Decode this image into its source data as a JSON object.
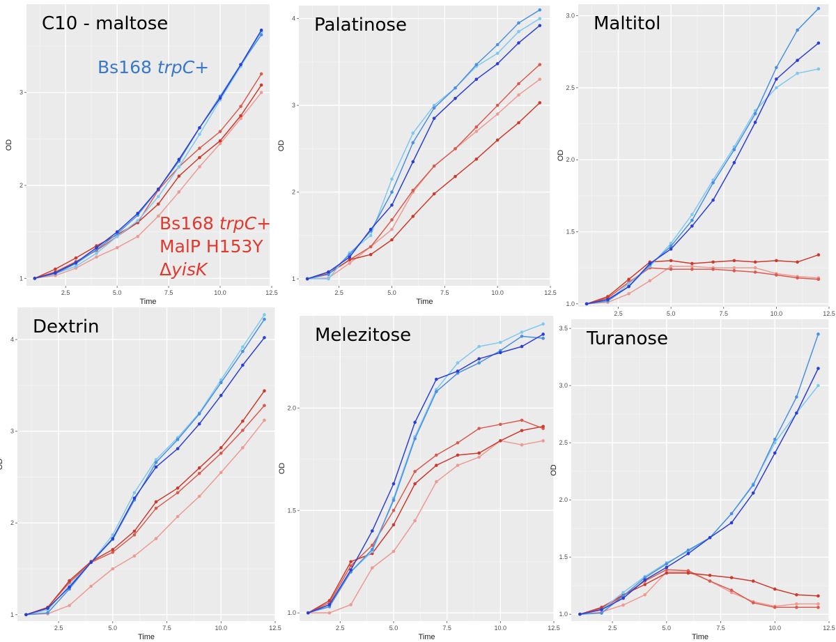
{
  "figure": {
    "legend": {
      "blue_label": {
        "prefix": "Bs168 ",
        "italic": "trpC",
        "suffix": "+",
        "color": "#3a78c8"
      },
      "red_label": {
        "line1_prefix": "Bs168 ",
        "line1_italic": "trpC",
        "line1_suffix": "+",
        "line2": "MalP H153Y",
        "line3_prefix": "Δ",
        "line3_italic": "yisK",
        "color": "#e03a2f"
      }
    },
    "series_colors": {
      "blue_light": "#7ec8f0",
      "blue_mid": "#4a90e2",
      "blue_dark": "#2a3fd4",
      "red_dark": "#cc3a2e",
      "red_mid": "#d95a4f",
      "red_light": "#ec9a92"
    },
    "panel_background": "#ebebeb"
  },
  "chart_data": [
    {
      "type": "line",
      "title": "C10 - maltose",
      "xlabel": "Time",
      "ylabel": "OD",
      "xlim": [
        0.6,
        12.4
      ],
      "ylim": [
        0.92,
        3.95
      ],
      "xticks": [
        2.5,
        5.0,
        7.5,
        10.0,
        12.5
      ],
      "xtick_labels": [
        "2.5",
        "5.0",
        "7.5",
        "10.0",
        "12.5"
      ],
      "yticks": [
        1,
        2,
        3
      ],
      "ytick_labels": [
        "1",
        "2",
        "3"
      ],
      "x": [
        1,
        2,
        3,
        4,
        5,
        6,
        7,
        8,
        9,
        10,
        11,
        12
      ],
      "series": [
        {
          "name": "blue_light",
          "values": [
            1,
            1.05,
            1.13,
            1.27,
            1.45,
            1.62,
            1.88,
            2.2,
            2.55,
            2.92,
            3.28,
            3.65
          ]
        },
        {
          "name": "blue_mid",
          "values": [
            1,
            1.05,
            1.16,
            1.31,
            1.48,
            1.68,
            1.96,
            2.26,
            2.62,
            2.96,
            3.3,
            3.62
          ]
        },
        {
          "name": "blue_dark",
          "values": [
            1,
            1.06,
            1.17,
            1.33,
            1.5,
            1.7,
            1.96,
            2.28,
            2.62,
            2.94,
            3.3,
            3.67
          ]
        },
        {
          "name": "red_dark",
          "values": [
            1,
            1.1,
            1.22,
            1.35,
            1.47,
            1.6,
            1.8,
            2.1,
            2.3,
            2.48,
            2.75,
            3.08
          ]
        },
        {
          "name": "red_mid",
          "values": [
            1,
            1.07,
            1.18,
            1.3,
            1.45,
            1.6,
            1.95,
            2.2,
            2.4,
            2.58,
            2.85,
            3.2
          ]
        },
        {
          "name": "red_light",
          "values": [
            1,
            1.03,
            1.11,
            1.23,
            1.33,
            1.45,
            1.67,
            1.93,
            2.2,
            2.45,
            2.72,
            3.0
          ]
        }
      ]
    },
    {
      "type": "line",
      "title": "Palatinose",
      "xlabel": "Time",
      "ylabel": "OD",
      "xlim": [
        0.6,
        12.5
      ],
      "ylim": [
        0.92,
        4.15
      ],
      "xticks": [
        2.5,
        5.0,
        7.5,
        10.0,
        12.5
      ],
      "xtick_labels": [
        "2.5",
        "5.0",
        "7.5",
        "10.0",
        "12.5"
      ],
      "yticks": [
        1,
        2,
        3,
        4
      ],
      "ytick_labels": [
        "1",
        "2",
        "3",
        "4"
      ],
      "x": [
        1,
        2,
        3,
        4,
        5,
        6,
        7,
        8,
        9,
        10,
        11,
        12
      ],
      "series": [
        {
          "name": "blue_light",
          "values": [
            1,
            1.0,
            1.3,
            1.5,
            2.15,
            2.68,
            3.0,
            3.2,
            3.45,
            3.6,
            3.85,
            4.0
          ]
        },
        {
          "name": "blue_mid",
          "values": [
            1,
            1.05,
            1.28,
            1.55,
            2.0,
            2.57,
            2.97,
            3.2,
            3.47,
            3.7,
            3.95,
            4.1
          ]
        },
        {
          "name": "blue_dark",
          "values": [
            1,
            1.08,
            1.25,
            1.57,
            1.85,
            2.35,
            2.85,
            3.08,
            3.3,
            3.48,
            3.72,
            3.92
          ]
        },
        {
          "name": "red_dark",
          "values": [
            1,
            1.06,
            1.22,
            1.28,
            1.45,
            1.72,
            1.98,
            2.18,
            2.38,
            2.6,
            2.8,
            3.03
          ]
        },
        {
          "name": "red_mid",
          "values": [
            1,
            1.06,
            1.22,
            1.37,
            1.68,
            2.02,
            2.3,
            2.5,
            2.75,
            3.0,
            3.25,
            3.47
          ]
        },
        {
          "name": "red_light",
          "values": [
            1,
            1.01,
            1.18,
            1.37,
            1.57,
            2.0,
            2.3,
            2.5,
            2.7,
            2.9,
            3.12,
            3.3
          ]
        }
      ]
    },
    {
      "type": "line",
      "title": "Maltitol",
      "xlabel": "Time",
      "ylabel": "OD",
      "xlim": [
        0.6,
        12.5
      ],
      "ylim": [
        0.98,
        3.08
      ],
      "xticks": [
        2.5,
        5.0,
        7.5,
        10.0,
        12.5
      ],
      "xtick_labels": [
        "2.5",
        "5.0",
        "7.5",
        "10.0",
        "12.5"
      ],
      "yticks": [
        1.0,
        1.5,
        2.0,
        2.5,
        3.0
      ],
      "ytick_labels": [
        "1.0",
        "1.5",
        "2.0",
        "2.5",
        "3.0"
      ],
      "x": [
        1,
        2,
        3,
        4,
        5,
        6,
        7,
        8,
        9,
        10,
        11,
        12
      ],
      "series": [
        {
          "name": "blue_light",
          "values": [
            1,
            1.02,
            1.14,
            1.26,
            1.42,
            1.62,
            1.86,
            2.09,
            2.34,
            2.5,
            2.6,
            2.63
          ]
        },
        {
          "name": "blue_mid",
          "values": [
            1,
            1.02,
            1.12,
            1.27,
            1.4,
            1.58,
            1.84,
            2.07,
            2.32,
            2.64,
            2.9,
            3.05
          ]
        },
        {
          "name": "blue_dark",
          "values": [
            1,
            1.03,
            1.12,
            1.28,
            1.38,
            1.54,
            1.72,
            1.98,
            2.26,
            2.56,
            2.69,
            2.81
          ]
        },
        {
          "name": "red_dark",
          "values": [
            1,
            1.05,
            1.17,
            1.29,
            1.3,
            1.28,
            1.29,
            1.3,
            1.29,
            1.3,
            1.29,
            1.34
          ]
        },
        {
          "name": "red_mid",
          "values": [
            1,
            1.04,
            1.15,
            1.25,
            1.24,
            1.24,
            1.24,
            1.23,
            1.22,
            1.2,
            1.18,
            1.17
          ]
        },
        {
          "name": "red_light",
          "values": [
            1,
            1.01,
            1.07,
            1.16,
            1.26,
            1.26,
            1.25,
            1.25,
            1.25,
            1.21,
            1.19,
            1.18
          ]
        }
      ]
    },
    {
      "type": "line",
      "title": "Dextrin",
      "xlabel": "Time",
      "ylabel": "OD",
      "xlim": [
        0.6,
        12.5
      ],
      "ylim": [
        0.93,
        4.35
      ],
      "xticks": [
        2.5,
        5.0,
        7.5,
        10.0,
        12.5
      ],
      "xtick_labels": [
        "2.5",
        "5.0",
        "7.5",
        "10.0",
        "12.5"
      ],
      "yticks": [
        1,
        2,
        3,
        4
      ],
      "ytick_labels": [
        "1",
        "2",
        "3",
        "4"
      ],
      "x": [
        1,
        2,
        3,
        4,
        5,
        6,
        7,
        8,
        9,
        10,
        11,
        12
      ],
      "series": [
        {
          "name": "blue_light",
          "values": [
            1,
            1.05,
            1.32,
            1.57,
            1.87,
            2.33,
            2.69,
            2.93,
            3.2,
            3.56,
            3.92,
            4.27
          ]
        },
        {
          "name": "blue_mid",
          "values": [
            1,
            1.02,
            1.28,
            1.57,
            1.82,
            2.25,
            2.66,
            2.91,
            3.19,
            3.53,
            3.87,
            4.22
          ]
        },
        {
          "name": "blue_dark",
          "values": [
            1,
            1.07,
            1.3,
            1.57,
            1.83,
            2.27,
            2.61,
            2.81,
            3.08,
            3.39,
            3.72,
            4.02
          ]
        },
        {
          "name": "red_dark",
          "values": [
            1,
            1.08,
            1.37,
            1.58,
            1.71,
            1.91,
            2.23,
            2.38,
            2.6,
            2.82,
            3.11,
            3.44
          ]
        },
        {
          "name": "red_mid",
          "values": [
            1,
            1.08,
            1.35,
            1.57,
            1.68,
            1.87,
            2.16,
            2.33,
            2.54,
            2.76,
            3.01,
            3.28
          ]
        },
        {
          "name": "red_light",
          "values": [
            1,
            1.01,
            1.1,
            1.31,
            1.5,
            1.64,
            1.83,
            2.07,
            2.29,
            2.55,
            2.82,
            3.12
          ]
        }
      ]
    },
    {
      "type": "line",
      "title": "Melezitose",
      "xlabel": "Time",
      "ylabel": "OD",
      "xlim": [
        0.6,
        12.5
      ],
      "ylim": [
        0.96,
        2.45
      ],
      "xticks": [
        2.5,
        5.0,
        7.5,
        10.0,
        12.5
      ],
      "xtick_labels": [
        "2.5",
        "5.0",
        "7.5",
        "10.0",
        "12.5"
      ],
      "yticks": [
        1.0,
        1.5,
        2.0
      ],
      "ytick_labels": [
        "1.0",
        "1.5",
        "2.0"
      ],
      "x": [
        1,
        2,
        3,
        4,
        5,
        6,
        7,
        8,
        9,
        10,
        11,
        12
      ],
      "series": [
        {
          "name": "blue_light",
          "values": [
            1,
            1.04,
            1.2,
            1.3,
            1.56,
            1.86,
            2.09,
            2.22,
            2.3,
            2.32,
            2.37,
            2.41
          ]
        },
        {
          "name": "blue_mid",
          "values": [
            1,
            1.03,
            1.2,
            1.31,
            1.55,
            1.85,
            2.08,
            2.17,
            2.22,
            2.28,
            2.35,
            2.34
          ]
        },
        {
          "name": "blue_dark",
          "values": [
            1,
            1.04,
            1.21,
            1.4,
            1.63,
            1.93,
            2.14,
            2.18,
            2.24,
            2.27,
            2.3,
            2.36
          ]
        },
        {
          "name": "red_dark",
          "values": [
            1,
            1.06,
            1.25,
            1.29,
            1.43,
            1.63,
            1.72,
            1.77,
            1.78,
            1.84,
            1.89,
            1.91
          ]
        },
        {
          "name": "red_mid",
          "values": [
            1,
            1.05,
            1.23,
            1.33,
            1.5,
            1.69,
            1.77,
            1.83,
            1.9,
            1.92,
            1.94,
            1.9
          ]
        },
        {
          "name": "red_light",
          "values": [
            1,
            1.0,
            1.04,
            1.22,
            1.3,
            1.45,
            1.64,
            1.72,
            1.76,
            1.84,
            1.82,
            1.84
          ]
        }
      ]
    },
    {
      "type": "line",
      "title": "Turanose",
      "xlabel": "Time",
      "ylabel": "OD",
      "xlim": [
        0.6,
        12.5
      ],
      "ylim": [
        0.94,
        3.58
      ],
      "xticks": [
        2.5,
        5.0,
        7.5,
        10.0,
        12.5
      ],
      "xtick_labels": [
        "2.5",
        "5.0",
        "7.5",
        "10.0",
        "12.5"
      ],
      "yticks": [
        1.0,
        1.5,
        2.0,
        2.5,
        3.0,
        3.5
      ],
      "ytick_labels": [
        "1.0",
        "1.5",
        "2.0",
        "2.5",
        "3.0",
        "3.5"
      ],
      "x": [
        1,
        2,
        3,
        4,
        5,
        6,
        7,
        8,
        9,
        10,
        11,
        12
      ],
      "series": [
        {
          "name": "blue_light",
          "values": [
            1,
            1.04,
            1.19,
            1.33,
            1.45,
            1.55,
            1.67,
            1.88,
            2.14,
            2.5,
            2.76,
            3.0
          ]
        },
        {
          "name": "blue_mid",
          "values": [
            1,
            1.01,
            1.16,
            1.32,
            1.44,
            1.56,
            1.67,
            1.88,
            2.13,
            2.53,
            2.9,
            3.45
          ]
        },
        {
          "name": "blue_dark",
          "values": [
            1,
            1.04,
            1.14,
            1.3,
            1.41,
            1.53,
            1.67,
            1.8,
            2.06,
            2.41,
            2.76,
            3.15
          ]
        },
        {
          "name": "red_dark",
          "values": [
            1,
            1.06,
            1.17,
            1.26,
            1.36,
            1.36,
            1.34,
            1.32,
            1.29,
            1.22,
            1.17,
            1.16
          ]
        },
        {
          "name": "red_mid",
          "values": [
            1,
            1.05,
            1.16,
            1.29,
            1.39,
            1.38,
            1.29,
            1.21,
            1.1,
            1.06,
            1.06,
            1.06
          ]
        },
        {
          "name": "red_light",
          "values": [
            1,
            1.02,
            1.08,
            1.17,
            1.37,
            1.37,
            1.29,
            1.19,
            1.11,
            1.07,
            1.09,
            1.09
          ]
        }
      ]
    }
  ]
}
